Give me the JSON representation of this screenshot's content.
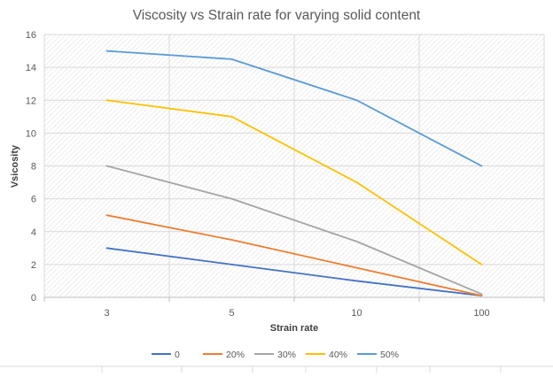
{
  "chart_data": {
    "type": "line",
    "title": "Viscosity vs Strain rate for varying solid content",
    "xlabel": "Strain rate",
    "ylabel": "Vsicosity",
    "categories": [
      "3",
      "5",
      "10",
      "100"
    ],
    "ylim": [
      0,
      16
    ],
    "yticks": [
      "0",
      "2",
      "4",
      "6",
      "8",
      "10",
      "12",
      "14",
      "16"
    ],
    "grid": true,
    "legend_position": "bottom",
    "series": [
      {
        "name": "0",
        "color": "#4472C4",
        "values": [
          3,
          2,
          1,
          0.1
        ]
      },
      {
        "name": "20%",
        "color": "#ED7D31",
        "values": [
          5,
          3.5,
          1.8,
          0.1
        ]
      },
      {
        "name": "30%",
        "color": "#A5A5A5",
        "values": [
          8,
          6,
          3.4,
          0.2
        ]
      },
      {
        "name": "40%",
        "color": "#FFC000",
        "values": [
          12,
          11,
          7,
          2
        ]
      },
      {
        "name": "50%",
        "color": "#5B9BD5",
        "values": [
          15,
          14.5,
          12,
          8
        ]
      }
    ]
  }
}
